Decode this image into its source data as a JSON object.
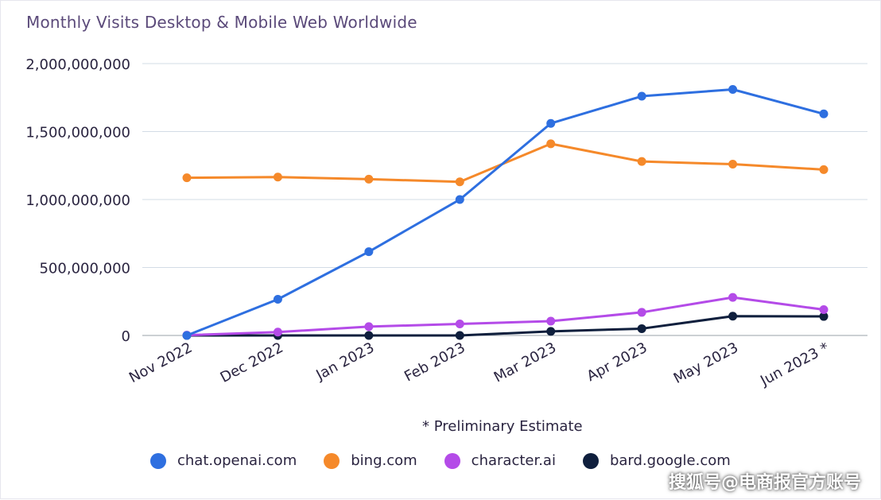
{
  "chart_data": {
    "type": "line",
    "title": "Monthly Visits Desktop & Mobile Web Worldwide",
    "categories": [
      "Nov 2022",
      "Dec 2022",
      "Jan 2023",
      "Feb 2023",
      "Mar 2023",
      "Apr 2023",
      "May 2023",
      "Jun 2023 *"
    ],
    "y_ticks": [
      "0",
      "500,000,000",
      "1,000,000,000",
      "1,500,000,000",
      "2,000,000,000"
    ],
    "ylim": [
      0,
      2000000000
    ],
    "grid": true,
    "legend_position": "bottom",
    "series": [
      {
        "name": "chat.openai.com",
        "color": "#2e6fe0",
        "values": [
          0,
          266000000,
          616000000,
          1000000000,
          1560000000,
          1760000000,
          1810000000,
          1630000000
        ]
      },
      {
        "name": "bing.com",
        "color": "#f5892a",
        "values": [
          1160000000,
          1165000000,
          1150000000,
          1130000000,
          1410000000,
          1280000000,
          1260000000,
          1220000000
        ]
      },
      {
        "name": "character.ai",
        "color": "#b44be8",
        "values": [
          2000000,
          25000000,
          65000000,
          85000000,
          105000000,
          170000000,
          280000000,
          190000000
        ]
      },
      {
        "name": "bard.google.com",
        "color": "#0f1f3d",
        "values": [
          0,
          0,
          0,
          0,
          30000000,
          50000000,
          142000000,
          140000000
        ]
      }
    ],
    "annotation": "* Preliminary Estimate"
  },
  "watermark": "搜狐号@电商报官方账号"
}
